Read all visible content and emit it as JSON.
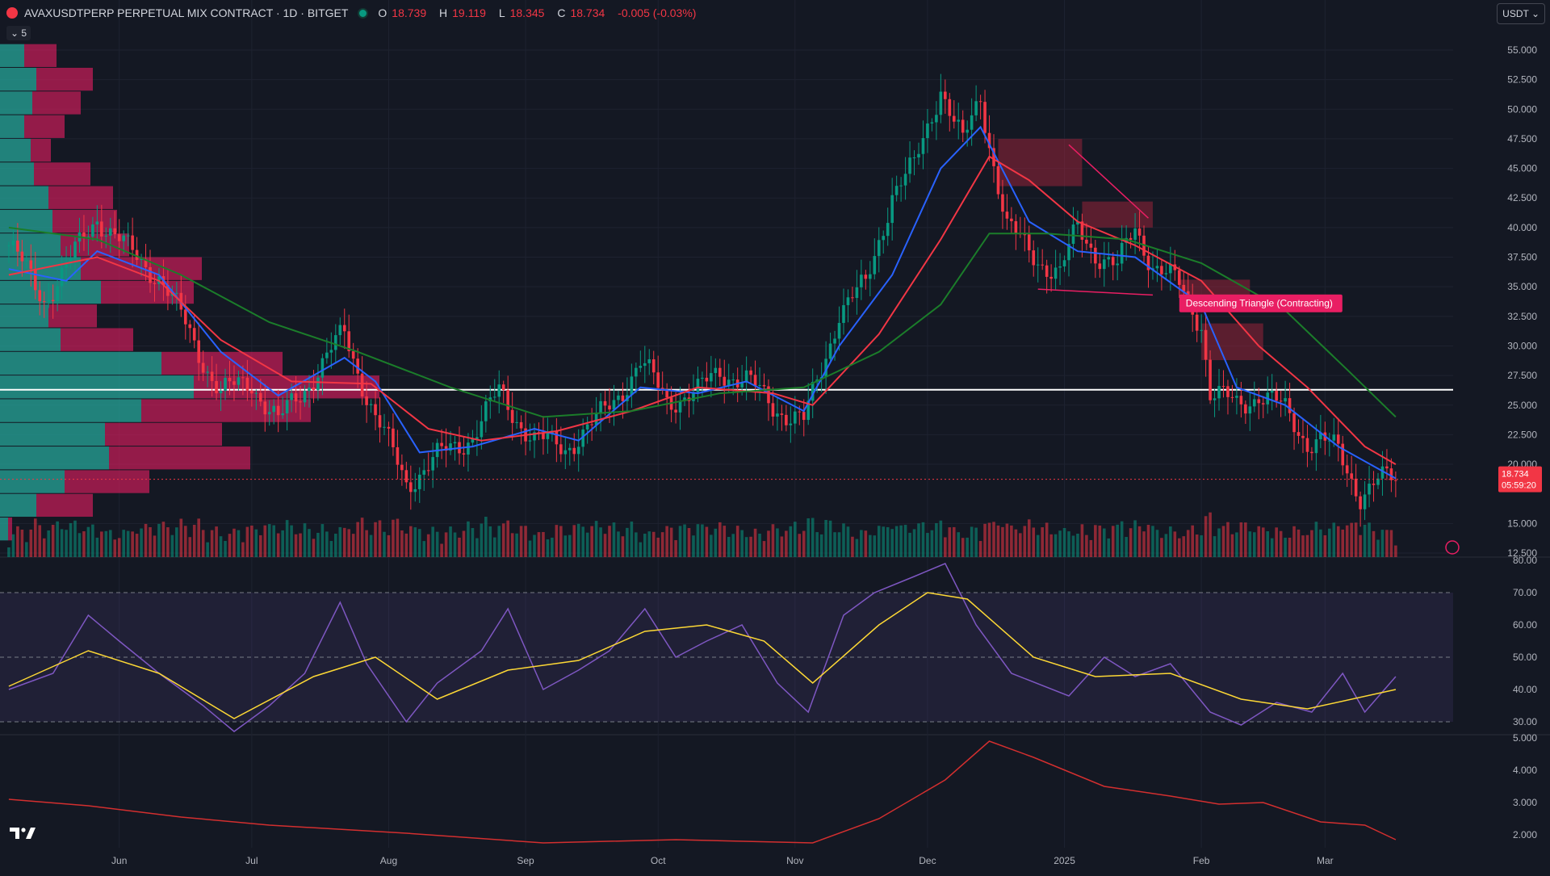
{
  "header": {
    "title": "AVAXUSDTPERP PERPETUAL MIX CONTRACT · 1D · BITGET",
    "ohlc": [
      {
        "k": "O",
        "v": "18.739"
      },
      {
        "k": "H",
        "v": "19.119"
      },
      {
        "k": "L",
        "v": "18.345"
      },
      {
        "k": "C",
        "v": "18.734"
      },
      {
        "k": "",
        "v": "-0.005 (-0.03%)"
      }
    ],
    "collapse_label": "5",
    "currency": "USDT",
    "down_color": "#f23645",
    "up_color": "#089981"
  },
  "chart_data": {
    "type": "candlestick",
    "price_axis": {
      "ticks": [
        "55.000",
        "52.500",
        "50.000",
        "47.500",
        "45.000",
        "42.500",
        "40.000",
        "37.500",
        "35.000",
        "32.500",
        "30.000",
        "27.500",
        "25.000",
        "22.500",
        "20.000",
        "15.000",
        "12.500"
      ],
      "ylim": [
        12.5,
        56.5
      ]
    },
    "time_axis": {
      "labels": [
        "Jun",
        "Jul",
        "Aug",
        "Sep",
        "Oct",
        "Nov",
        "Dec",
        "2025",
        "Feb",
        "Mar"
      ],
      "label_dates": [
        "2024-06-01",
        "2024-07-01",
        "2024-08-01",
        "2024-09-01",
        "2024-10-01",
        "2024-11-01",
        "2024-12-01",
        "2025-01-01",
        "2025-02-01",
        "2025-03-01"
      ],
      "start": "2024-05-07",
      "end": "2025-03-17"
    },
    "last_price": {
      "value": 18.734,
      "label": "18.734",
      "countdown": "05:59:20"
    },
    "horizontal_line": 26.3,
    "close_path": [
      [
        "2024-05-07",
        38.5
      ],
      [
        "2024-05-15",
        34.0
      ],
      [
        "2024-05-20",
        36.5
      ],
      [
        "2024-05-27",
        41.0
      ],
      [
        "2024-06-03",
        38.0
      ],
      [
        "2024-06-10",
        36.0
      ],
      [
        "2024-06-17",
        31.0
      ],
      [
        "2024-06-24",
        26.0
      ],
      [
        "2024-07-01",
        27.0
      ],
      [
        "2024-07-07",
        23.5
      ],
      [
        "2024-07-14",
        27.0
      ],
      [
        "2024-07-22",
        31.0
      ],
      [
        "2024-07-29",
        24.0
      ],
      [
        "2024-08-05",
        18.5
      ],
      [
        "2024-08-12",
        20.5
      ],
      [
        "2024-08-20",
        22.5
      ],
      [
        "2024-08-26",
        26.0
      ],
      [
        "2024-09-03",
        22.0
      ],
      [
        "2024-09-10",
        21.5
      ],
      [
        "2024-09-17",
        23.5
      ],
      [
        "2024-09-27",
        28.5
      ],
      [
        "2024-10-03",
        25.5
      ],
      [
        "2024-10-10",
        26.0
      ],
      [
        "2024-10-15",
        28.0
      ],
      [
        "2024-10-21",
        27.0
      ],
      [
        "2024-10-27",
        25.0
      ],
      [
        "2024-11-03",
        23.5
      ],
      [
        "2024-11-07",
        28.0
      ],
      [
        "2024-11-11",
        33.0
      ],
      [
        "2024-11-17",
        35.0
      ],
      [
        "2024-11-23",
        43.0
      ],
      [
        "2024-11-28",
        45.0
      ],
      [
        "2024-12-04",
        52.0
      ],
      [
        "2024-12-09",
        47.0
      ],
      [
        "2024-12-13",
        51.0
      ],
      [
        "2024-12-19",
        40.0
      ],
      [
        "2024-12-24",
        38.0
      ],
      [
        "2024-12-31",
        36.0
      ],
      [
        "2025-01-04",
        40.0
      ],
      [
        "2025-01-08",
        38.0
      ],
      [
        "2025-01-13",
        36.5
      ],
      [
        "2025-01-17",
        40.0
      ],
      [
        "2025-01-21",
        37.0
      ],
      [
        "2025-01-27",
        35.0
      ],
      [
        "2025-02-01",
        32.0
      ],
      [
        "2025-02-03",
        26.0
      ],
      [
        "2025-02-09",
        25.0
      ],
      [
        "2025-02-14",
        26.0
      ],
      [
        "2025-02-20",
        24.5
      ],
      [
        "2025-02-25",
        22.0
      ],
      [
        "2025-02-28",
        22.0
      ],
      [
        "2025-03-04",
        21.0
      ],
      [
        "2025-03-09",
        17.5
      ],
      [
        "2025-03-13",
        18.5
      ],
      [
        "2025-03-17",
        18.734
      ]
    ],
    "moving_averages": [
      {
        "color": "#2962ff",
        "points": [
          [
            "2024-05-07",
            36.5
          ],
          [
            "2024-05-20",
            35.5
          ],
          [
            "2024-05-27",
            38.0
          ],
          [
            "2024-06-10",
            36.0
          ],
          [
            "2024-06-24",
            29.5
          ],
          [
            "2024-07-07",
            25.8
          ],
          [
            "2024-07-22",
            29.0
          ],
          [
            "2024-07-29",
            27.0
          ],
          [
            "2024-08-08",
            21.0
          ],
          [
            "2024-08-20",
            21.5
          ],
          [
            "2024-09-03",
            23.0
          ],
          [
            "2024-09-13",
            22.0
          ],
          [
            "2024-09-27",
            26.5
          ],
          [
            "2024-10-10",
            26.0
          ],
          [
            "2024-10-21",
            27.0
          ],
          [
            "2024-11-03",
            24.5
          ],
          [
            "2024-11-11",
            30.0
          ],
          [
            "2024-11-23",
            36.0
          ],
          [
            "2024-12-04",
            45.0
          ],
          [
            "2024-12-13",
            48.5
          ],
          [
            "2024-12-24",
            40.5
          ],
          [
            "2025-01-04",
            38.0
          ],
          [
            "2025-01-17",
            37.5
          ],
          [
            "2025-02-01",
            33.5
          ],
          [
            "2025-02-09",
            26.5
          ],
          [
            "2025-02-20",
            25.0
          ],
          [
            "2025-03-04",
            21.5
          ],
          [
            "2025-03-17",
            18.8
          ]
        ]
      },
      {
        "color": "#f23645",
        "points": [
          [
            "2024-05-07",
            36.0
          ],
          [
            "2024-05-27",
            37.5
          ],
          [
            "2024-06-10",
            35.5
          ],
          [
            "2024-06-24",
            30.5
          ],
          [
            "2024-07-10",
            27.0
          ],
          [
            "2024-07-28",
            26.8
          ],
          [
            "2024-08-10",
            23.0
          ],
          [
            "2024-08-22",
            22.0
          ],
          [
            "2024-09-08",
            22.8
          ],
          [
            "2024-09-25",
            24.5
          ],
          [
            "2024-10-10",
            26.5
          ],
          [
            "2024-10-27",
            26.0
          ],
          [
            "2024-11-05",
            25.0
          ],
          [
            "2024-11-20",
            31.0
          ],
          [
            "2024-12-04",
            39.0
          ],
          [
            "2024-12-15",
            46.0
          ],
          [
            "2024-12-24",
            44.0
          ],
          [
            "2025-01-04",
            40.5
          ],
          [
            "2025-01-17",
            38.5
          ],
          [
            "2025-02-01",
            35.5
          ],
          [
            "2025-02-14",
            30.0
          ],
          [
            "2025-02-25",
            26.5
          ],
          [
            "2025-03-10",
            21.5
          ],
          [
            "2025-03-17",
            20.0
          ]
        ]
      },
      {
        "color": "#1b7d2a",
        "points": [
          [
            "2024-05-07",
            40.0
          ],
          [
            "2024-05-27",
            39.0
          ],
          [
            "2024-06-15",
            36.0
          ],
          [
            "2024-07-05",
            32.0
          ],
          [
            "2024-07-25",
            29.5
          ],
          [
            "2024-08-15",
            26.5
          ],
          [
            "2024-09-05",
            24.0
          ],
          [
            "2024-09-25",
            24.5
          ],
          [
            "2024-10-15",
            26.0
          ],
          [
            "2024-11-03",
            26.5
          ],
          [
            "2024-11-20",
            29.5
          ],
          [
            "2024-12-04",
            33.5
          ],
          [
            "2024-12-15",
            39.5
          ],
          [
            "2024-12-28",
            39.5
          ],
          [
            "2025-01-15",
            39.0
          ],
          [
            "2025-02-01",
            37.0
          ],
          [
            "2025-02-20",
            33.0
          ],
          [
            "2025-03-06",
            28.0
          ],
          [
            "2025-03-17",
            24.0
          ]
        ]
      }
    ],
    "volume_profile": [
      {
        "price": 54.5,
        "up": 0.3,
        "down": 0.4
      },
      {
        "price": 52.5,
        "up": 0.45,
        "down": 0.7
      },
      {
        "price": 50.5,
        "up": 0.4,
        "down": 0.6
      },
      {
        "price": 48.5,
        "up": 0.3,
        "down": 0.5
      },
      {
        "price": 46.5,
        "up": 0.38,
        "down": 0.25
      },
      {
        "price": 44.5,
        "up": 0.42,
        "down": 0.7
      },
      {
        "price": 42.5,
        "up": 0.6,
        "down": 0.8
      },
      {
        "price": 40.5,
        "up": 0.65,
        "down": 0.8
      },
      {
        "price": 38.5,
        "up": 0.75,
        "down": 0.85
      },
      {
        "price": 36.5,
        "up": 1.0,
        "down": 1.5
      },
      {
        "price": 34.5,
        "up": 1.25,
        "down": 1.15
      },
      {
        "price": 32.5,
        "up": 0.6,
        "down": 0.6
      },
      {
        "price": 30.5,
        "up": 0.75,
        "down": 0.9
      },
      {
        "price": 28.5,
        "up": 2.0,
        "down": 1.5
      },
      {
        "price": 26.5,
        "up": 2.4,
        "down": 2.3
      },
      {
        "price": 24.5,
        "up": 1.75,
        "down": 2.1
      },
      {
        "price": 22.5,
        "up": 1.3,
        "down": 1.45
      },
      {
        "price": 20.5,
        "up": 1.35,
        "down": 1.75
      },
      {
        "price": 18.5,
        "up": 0.8,
        "down": 1.05
      },
      {
        "price": 16.5,
        "up": 0.45,
        "down": 0.7
      },
      {
        "price": 14.5,
        "up": 0.1,
        "down": 0.05
      }
    ],
    "zones": [
      {
        "from": "2024-12-17",
        "to": "2025-01-05",
        "low": 43.5,
        "high": 47.5
      },
      {
        "from": "2025-01-05",
        "to": "2025-01-21",
        "low": 40.0,
        "high": 42.2
      },
      {
        "from": "2025-01-27",
        "to": "2025-02-12",
        "low": 34.2,
        "high": 35.6
      },
      {
        "from": "2025-02-01",
        "to": "2025-02-15",
        "low": 28.8,
        "high": 31.9
      }
    ],
    "pattern": {
      "label": "Descending Triangle (Contracting)",
      "upper": [
        [
          "2025-01-02",
          47.0
        ],
        [
          "2025-01-20",
          40.8
        ]
      ],
      "lower": [
        [
          "2024-12-26",
          34.8
        ],
        [
          "2025-01-21",
          34.3
        ]
      ]
    },
    "volume_note": "bars sized by estimated relative volume",
    "rsi": {
      "ticks": [
        "80.00",
        "70.00",
        "60.00",
        "50.00",
        "40.00",
        "30.00"
      ],
      "ylim": [
        26,
        81
      ],
      "band": [
        30,
        70
      ],
      "rsi_points": [
        [
          "2024-05-07",
          40
        ],
        [
          "2024-05-17",
          45
        ],
        [
          "2024-05-25",
          63
        ],
        [
          "2024-06-01",
          55
        ],
        [
          "2024-06-10",
          45
        ],
        [
          "2024-06-20",
          35
        ],
        [
          "2024-06-27",
          27
        ],
        [
          "2024-07-05",
          35
        ],
        [
          "2024-07-13",
          45
        ],
        [
          "2024-07-21",
          67
        ],
        [
          "2024-07-27",
          48
        ],
        [
          "2024-08-05",
          30
        ],
        [
          "2024-08-12",
          42
        ],
        [
          "2024-08-22",
          52
        ],
        [
          "2024-08-28",
          65
        ],
        [
          "2024-09-05",
          40
        ],
        [
          "2024-09-13",
          46
        ],
        [
          "2024-09-20",
          52
        ],
        [
          "2024-09-28",
          65
        ],
        [
          "2024-10-05",
          50
        ],
        [
          "2024-10-12",
          55
        ],
        [
          "2024-10-20",
          60
        ],
        [
          "2024-10-28",
          42
        ],
        [
          "2024-11-04",
          33
        ],
        [
          "2024-11-12",
          63
        ],
        [
          "2024-11-19",
          70
        ],
        [
          "2024-11-28",
          75
        ],
        [
          "2024-12-05",
          79
        ],
        [
          "2024-12-12",
          60
        ],
        [
          "2024-12-20",
          45
        ],
        [
          "2025-01-02",
          38
        ],
        [
          "2025-01-10",
          50
        ],
        [
          "2025-01-17",
          44
        ],
        [
          "2025-01-25",
          48
        ],
        [
          "2025-02-03",
          33
        ],
        [
          "2025-02-10",
          29
        ],
        [
          "2025-02-18",
          36
        ],
        [
          "2025-02-26",
          33
        ],
        [
          "2025-03-05",
          45
        ],
        [
          "2025-03-10",
          33
        ],
        [
          "2025-03-17",
          44
        ]
      ],
      "ma_points": [
        [
          "2024-05-07",
          41
        ],
        [
          "2024-05-25",
          52
        ],
        [
          "2024-06-10",
          45
        ],
        [
          "2024-06-27",
          31
        ],
        [
          "2024-07-15",
          44
        ],
        [
          "2024-07-29",
          50
        ],
        [
          "2024-08-12",
          37
        ],
        [
          "2024-08-28",
          46
        ],
        [
          "2024-09-13",
          49
        ],
        [
          "2024-09-28",
          58
        ],
        [
          "2024-10-12",
          60
        ],
        [
          "2024-10-25",
          55
        ],
        [
          "2024-11-05",
          42
        ],
        [
          "2024-11-20",
          60
        ],
        [
          "2024-12-01",
          70
        ],
        [
          "2024-12-10",
          68
        ],
        [
          "2024-12-25",
          50
        ],
        [
          "2025-01-08",
          44
        ],
        [
          "2025-01-25",
          45
        ],
        [
          "2025-02-10",
          37
        ],
        [
          "2025-02-25",
          34
        ],
        [
          "2025-03-17",
          40
        ]
      ]
    },
    "lower_pane": {
      "ticks": [
        "5.000",
        "4.000",
        "3.000",
        "2.000"
      ],
      "ylim": [
        1.6,
        5.1
      ],
      "points": [
        [
          "2024-05-07",
          3.1
        ],
        [
          "2024-05-25",
          2.9
        ],
        [
          "2024-06-15",
          2.55
        ],
        [
          "2024-07-05",
          2.3
        ],
        [
          "2024-08-05",
          2.05
        ],
        [
          "2024-09-05",
          1.75
        ],
        [
          "2024-10-05",
          1.85
        ],
        [
          "2024-11-05",
          1.75
        ],
        [
          "2024-11-20",
          2.5
        ],
        [
          "2024-12-05",
          3.7
        ],
        [
          "2024-12-15",
          4.9
        ],
        [
          "2024-12-25",
          4.4
        ],
        [
          "2025-01-10",
          3.5
        ],
        [
          "2025-01-25",
          3.2
        ],
        [
          "2025-02-05",
          2.95
        ],
        [
          "2025-02-15",
          3.0
        ],
        [
          "2025-02-28",
          2.4
        ],
        [
          "2025-03-10",
          2.3
        ],
        [
          "2025-03-17",
          1.85
        ]
      ]
    }
  }
}
